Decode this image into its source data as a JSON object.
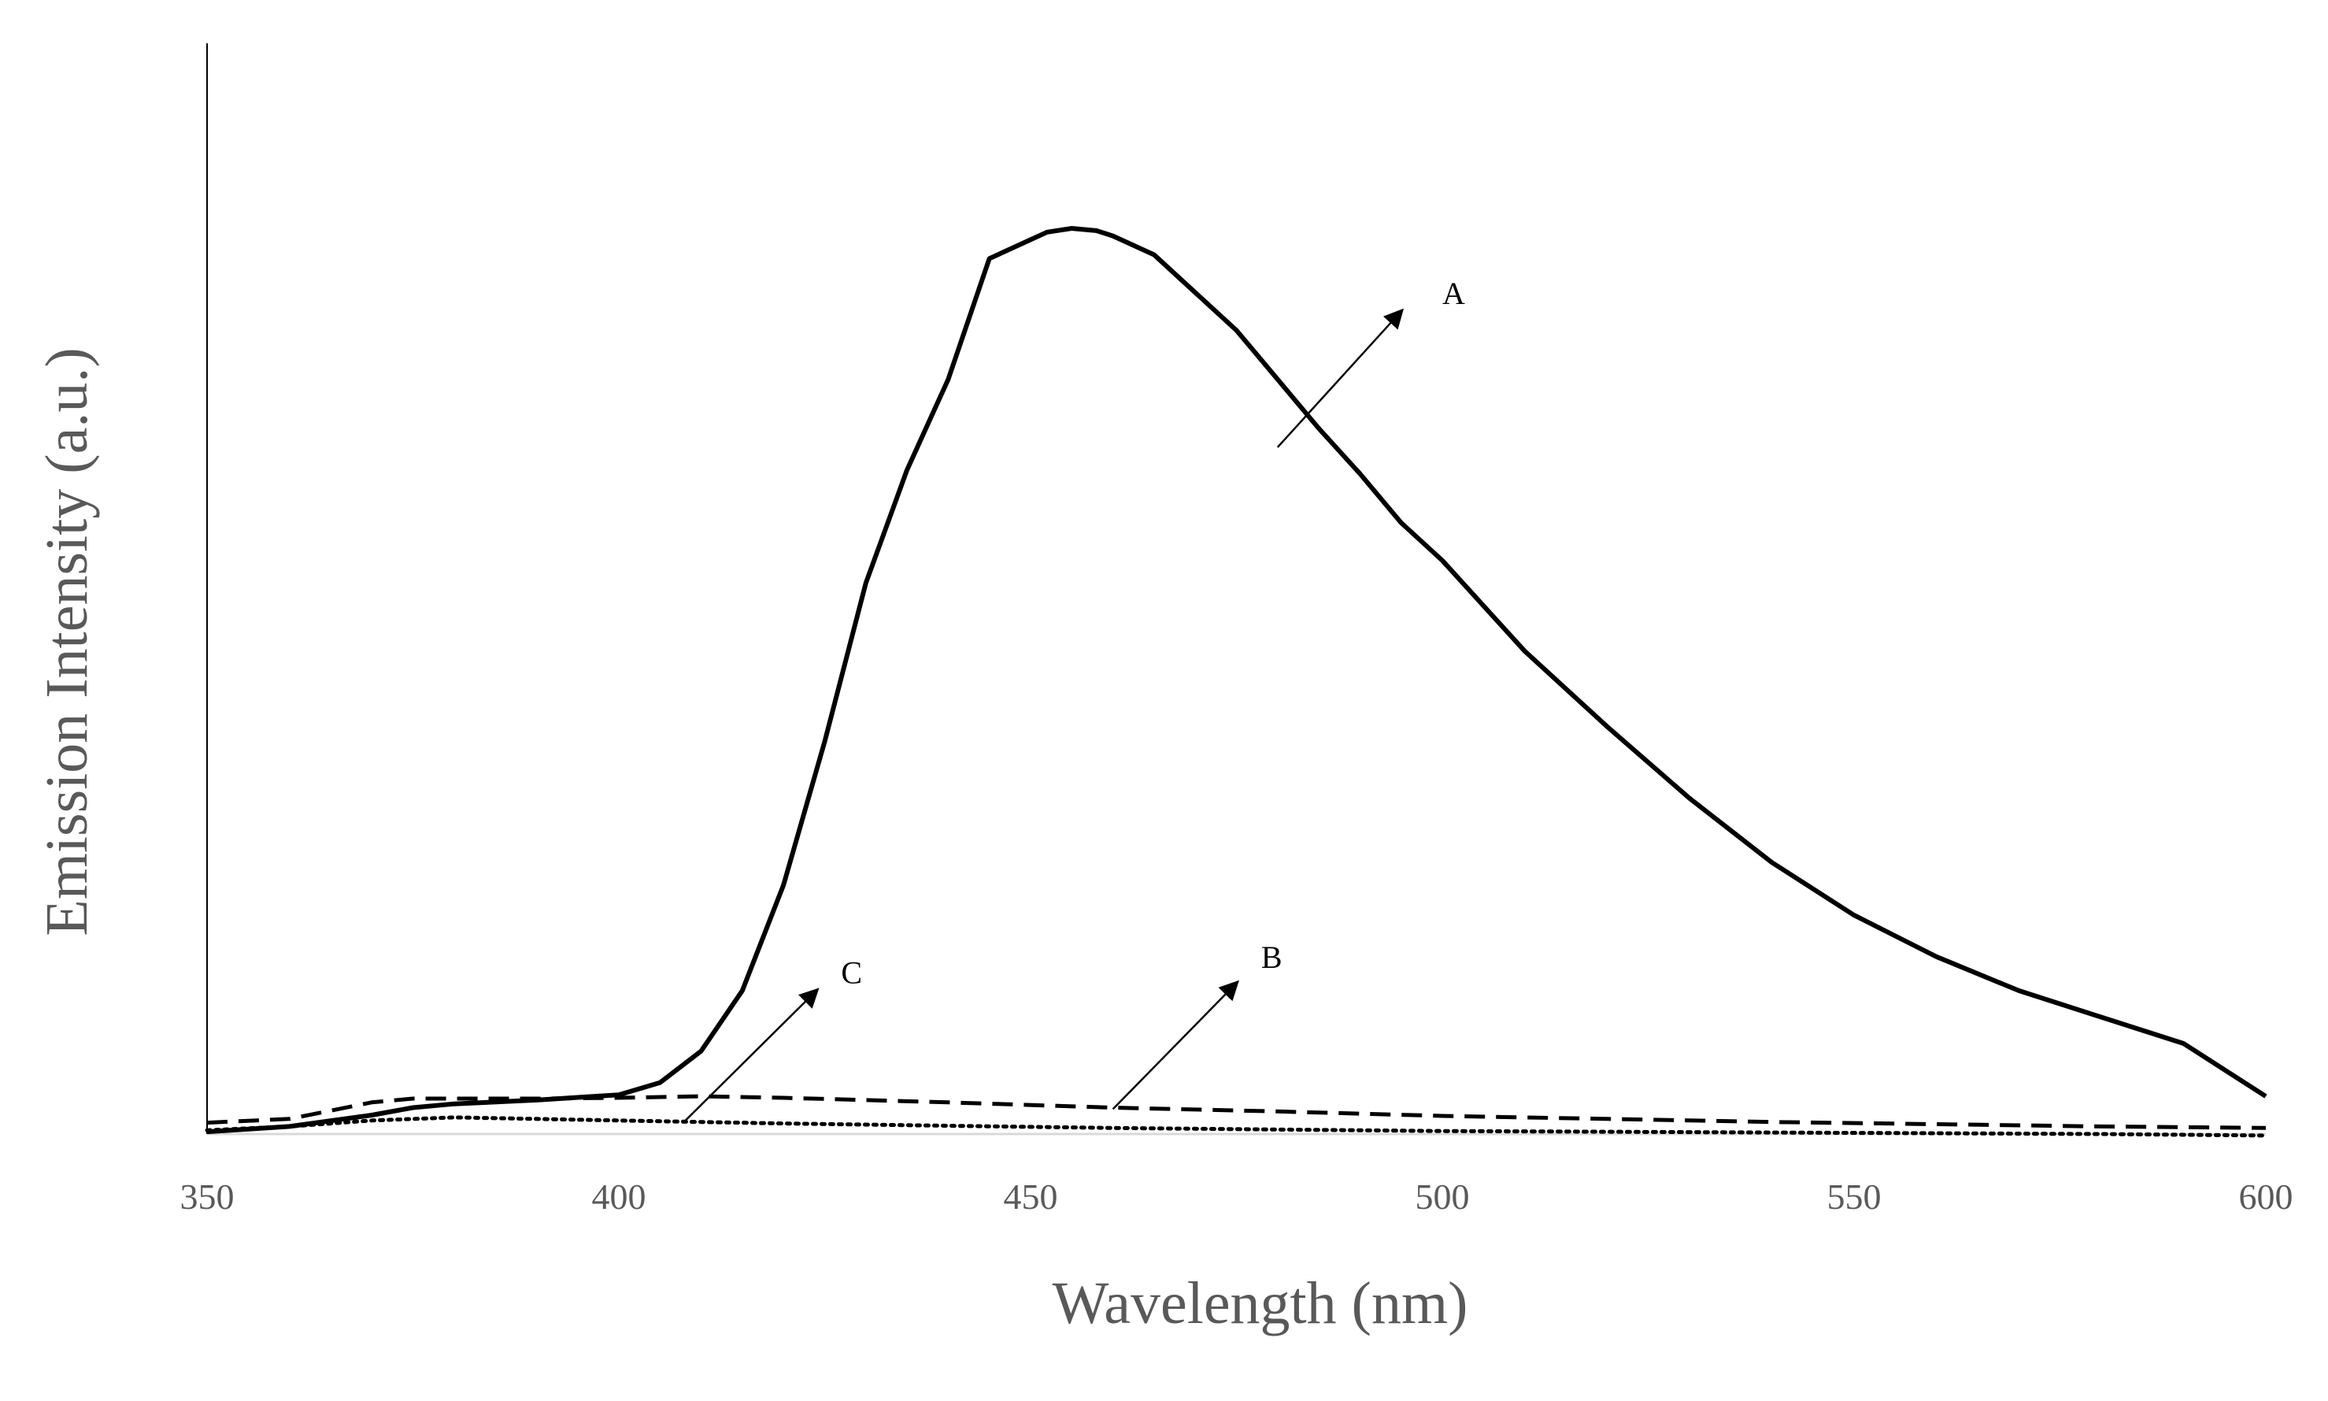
{
  "chart_data": {
    "type": "line",
    "title": "",
    "xlabel": "Wavelength (nm)",
    "ylabel": "Emission Intensity (a.u.)",
    "xlim": [
      350,
      600
    ],
    "ylim": [
      0,
      1.2
    ],
    "xticks": [
      "350",
      "400",
      "450",
      "500",
      "550",
      "600"
    ],
    "grid": false,
    "legend": "none",
    "series": [
      {
        "name": "A",
        "style": "solid",
        "x": [
          350,
          360,
          370,
          375,
          380,
          390,
          400,
          405,
          410,
          415,
          420,
          425,
          430,
          435,
          440,
          445,
          450,
          452,
          455,
          458,
          460,
          465,
          470,
          475,
          480,
          485,
          490,
          495,
          500,
          510,
          520,
          530,
          540,
          550,
          560,
          570,
          580,
          590,
          600
        ],
        "y": [
          0.003,
          0.01,
          0.025,
          0.035,
          0.04,
          0.045,
          0.052,
          0.068,
          0.11,
          0.19,
          0.33,
          0.52,
          0.73,
          0.88,
          1.0,
          1.16,
          1.185,
          1.195,
          1.2,
          1.197,
          1.19,
          1.165,
          1.115,
          1.065,
          1.0,
          0.935,
          0.875,
          0.81,
          0.76,
          0.64,
          0.54,
          0.445,
          0.36,
          0.29,
          0.235,
          0.19,
          0.155,
          0.12,
          0.05
        ]
      },
      {
        "name": "B",
        "style": "dashed",
        "x": [
          350,
          360,
          370,
          375,
          380,
          390,
          400,
          410,
          420,
          440,
          460,
          480,
          500,
          520,
          540,
          560,
          580,
          600
        ],
        "y": [
          0.015,
          0.02,
          0.042,
          0.047,
          0.047,
          0.047,
          0.048,
          0.05,
          0.048,
          0.042,
          0.035,
          0.03,
          0.024,
          0.02,
          0.016,
          0.013,
          0.01,
          0.008
        ]
      },
      {
        "name": "C",
        "style": "dotted",
        "x": [
          350,
          360,
          370,
          380,
          390,
          400,
          410,
          420,
          440,
          460,
          480,
          500,
          520,
          540,
          560,
          580,
          600
        ],
        "y": [
          0.005,
          0.01,
          0.018,
          0.022,
          0.02,
          0.018,
          0.016,
          0.014,
          0.011,
          0.008,
          0.006,
          0.004,
          0.003,
          0.002,
          0.001,
          0.0,
          -0.002
        ]
      }
    ],
    "annotations": [
      {
        "label": "A",
        "series": "A",
        "from": [
          480,
          0.91
        ],
        "to": [
          495,
          1.09
        ],
        "text_at": [
          500,
          1.1
        ]
      },
      {
        "label": "B",
        "series": "B",
        "from": [
          460,
          0.033
        ],
        "to": [
          475,
          0.2
        ],
        "text_at": [
          478,
          0.22
        ]
      },
      {
        "label": "C",
        "series": "C",
        "from": [
          408,
          0.017
        ],
        "to": [
          424,
          0.19
        ],
        "text_at": [
          427,
          0.2
        ]
      }
    ]
  }
}
